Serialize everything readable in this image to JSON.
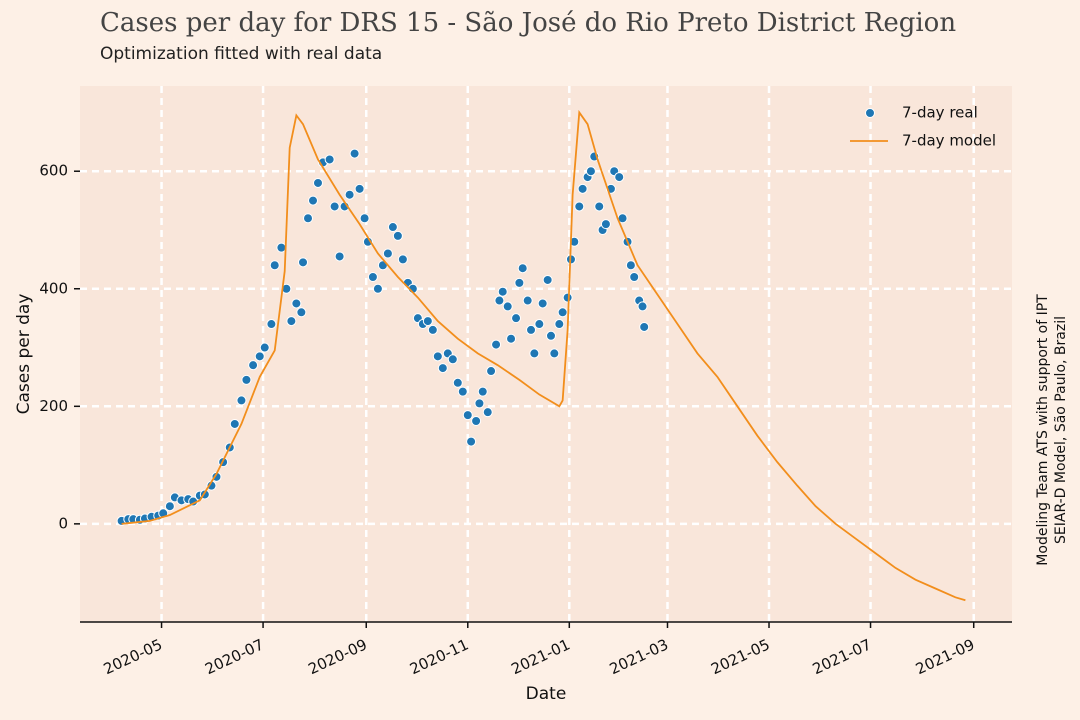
{
  "chart_data": {
    "type": "line",
    "title": "Cases per day for DRS 15 - São José do Rio Preto District Region",
    "subtitle": "Optimization fitted with real data",
    "xlabel": "Date",
    "ylabel": "Cases per day",
    "annotation": [
      "Modeling Team ATS with support of IPT",
      "SEIAR-D Model, São Paulo, Brazil"
    ],
    "xlim": [
      "2020-03-13",
      "2021-09-24"
    ],
    "xticks": [
      {
        "value": "2020-05-01",
        "label": "2020-05"
      },
      {
        "value": "2020-07-01",
        "label": "2020-07"
      },
      {
        "value": "2020-09-01",
        "label": "2020-09"
      },
      {
        "value": "2020-11-01",
        "label": "2020-11"
      },
      {
        "value": "2021-01-01",
        "label": "2021-01"
      },
      {
        "value": "2021-03-01",
        "label": "2021-03"
      },
      {
        "value": "2021-05-01",
        "label": "2021-05"
      },
      {
        "value": "2021-07-01",
        "label": "2021-07"
      },
      {
        "value": "2021-09-01",
        "label": "2021-09"
      }
    ],
    "ylim": [
      -167,
      745
    ],
    "yticks": [
      0,
      200,
      400,
      600
    ],
    "grid": true,
    "legend": "upper right",
    "series": [
      {
        "name": "7-day real",
        "type": "scatter",
        "color": "#1f77b4",
        "x": [
          "2020-04-07",
          "2020-04-11",
          "2020-04-14",
          "2020-04-18",
          "2020-04-21",
          "2020-04-25",
          "2020-04-29",
          "2020-05-02",
          "2020-05-06",
          "2020-05-09",
          "2020-05-13",
          "2020-05-17",
          "2020-05-20",
          "2020-05-24",
          "2020-05-27",
          "2020-05-31",
          "2020-06-03",
          "2020-06-07",
          "2020-06-11",
          "2020-06-14",
          "2020-06-18",
          "2020-06-21",
          "2020-06-25",
          "2020-06-29",
          "2020-07-02",
          "2020-07-06",
          "2020-07-08",
          "2020-07-12",
          "2020-07-15",
          "2020-07-18",
          "2020-07-21",
          "2020-07-24",
          "2020-07-25",
          "2020-07-28",
          "2020-07-31",
          "2020-08-03",
          "2020-08-06",
          "2020-08-10",
          "2020-08-13",
          "2020-08-16",
          "2020-08-19",
          "2020-08-22",
          "2020-08-25",
          "2020-08-28",
          "2020-08-31",
          "2020-09-02",
          "2020-09-05",
          "2020-09-08",
          "2020-09-11",
          "2020-09-14",
          "2020-09-17",
          "2020-09-20",
          "2020-09-23",
          "2020-09-26",
          "2020-09-29",
          "2020-10-02",
          "2020-10-05",
          "2020-10-08",
          "2020-10-11",
          "2020-10-14",
          "2020-10-17",
          "2020-10-20",
          "2020-10-23",
          "2020-10-26",
          "2020-10-29",
          "2020-11-01",
          "2020-11-03",
          "2020-11-06",
          "2020-11-08",
          "2020-11-10",
          "2020-11-13",
          "2020-11-15",
          "2020-11-18",
          "2020-11-20",
          "2020-11-22",
          "2020-11-25",
          "2020-11-27",
          "2020-11-30",
          "2020-12-02",
          "2020-12-04",
          "2020-12-07",
          "2020-12-09",
          "2020-12-11",
          "2020-12-14",
          "2020-12-16",
          "2020-12-19",
          "2020-12-21",
          "2020-12-23",
          "2020-12-26",
          "2020-12-28",
          "2020-12-31",
          "2021-01-02",
          "2021-01-04",
          "2021-01-07",
          "2021-01-09",
          "2021-01-12",
          "2021-01-14",
          "2021-01-16",
          "2021-01-19",
          "2021-01-21",
          "2021-01-23",
          "2021-01-26",
          "2021-01-28",
          "2021-01-31",
          "2021-02-02",
          "2021-02-05",
          "2021-02-07",
          "2021-02-09",
          "2021-02-12",
          "2021-02-14",
          "2021-02-15"
        ],
        "values": [
          5,
          8,
          8,
          7,
          9,
          12,
          14,
          18,
          30,
          45,
          40,
          42,
          38,
          48,
          50,
          65,
          80,
          105,
          130,
          170,
          210,
          245,
          270,
          285,
          300,
          340,
          440,
          470,
          400,
          345,
          375,
          360,
          445,
          520,
          550,
          580,
          615,
          620,
          540,
          455,
          540,
          560,
          630,
          570,
          520,
          480,
          420,
          400,
          440,
          460,
          505,
          490,
          450,
          410,
          400,
          350,
          340,
          345,
          330,
          285,
          265,
          290,
          280,
          240,
          225,
          185,
          140,
          175,
          205,
          225,
          190,
          260,
          305,
          380,
          395,
          370,
          315,
          350,
          410,
          435,
          380,
          330,
          290,
          340,
          375,
          415,
          320,
          290,
          340,
          360,
          385,
          450,
          480,
          540,
          570,
          590,
          600,
          625,
          540,
          500,
          510,
          570,
          600,
          590,
          520,
          480,
          440,
          420,
          380,
          370,
          335
        ]
      },
      {
        "name": "7-day model",
        "type": "line",
        "color": "#f28e1c",
        "x": [
          "2020-04-07",
          "2020-04-24",
          "2020-05-06",
          "2020-05-24",
          "2020-06-03",
          "2020-06-18",
          "2020-06-29",
          "2020-07-08",
          "2020-07-14",
          "2020-07-17",
          "2020-07-21",
          "2020-07-25",
          "2020-08-03",
          "2020-08-16",
          "2020-08-28",
          "2020-09-08",
          "2020-09-20",
          "2020-10-02",
          "2020-10-14",
          "2020-10-26",
          "2020-11-07",
          "2020-11-19",
          "2020-12-02",
          "2020-12-14",
          "2020-12-26",
          "2020-12-28",
          "2020-12-31",
          "2021-01-03",
          "2021-01-07",
          "2021-01-12",
          "2021-01-18",
          "2021-01-30",
          "2021-02-11",
          "2021-02-23",
          "2021-03-07",
          "2021-03-19",
          "2021-03-31",
          "2021-04-12",
          "2021-04-24",
          "2021-05-06",
          "2021-05-18",
          "2021-05-29",
          "2021-06-10",
          "2021-06-22",
          "2021-07-04",
          "2021-07-16",
          "2021-07-28",
          "2021-08-09",
          "2021-08-21",
          "2021-08-27"
        ],
        "values": [
          0,
          5,
          15,
          40,
          85,
          170,
          250,
          295,
          430,
          640,
          695,
          680,
          620,
          560,
          510,
          460,
          420,
          385,
          345,
          315,
          290,
          270,
          245,
          220,
          200,
          210,
          330,
          560,
          700,
          680,
          620,
          520,
          440,
          390,
          340,
          290,
          250,
          200,
          150,
          105,
          65,
          30,
          0,
          -25,
          -50,
          -75,
          -95,
          -110,
          -125,
          -130
        ]
      }
    ]
  }
}
